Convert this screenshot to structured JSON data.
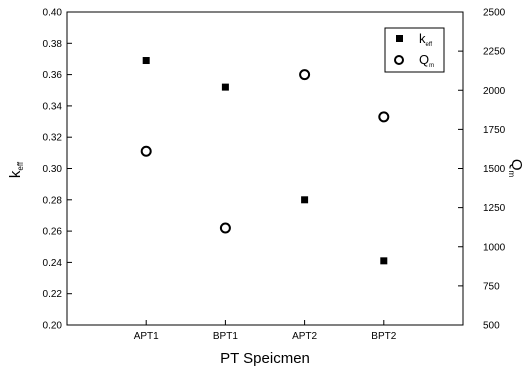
{
  "chart_data": {
    "type": "scatter",
    "categories": [
      "APT1",
      "BPT1",
      "APT2",
      "BPT2"
    ],
    "xlabel": "PT Speicmen",
    "y_left": {
      "label_main": "k",
      "label_sub": "eff",
      "ylim": [
        0.2,
        0.4
      ],
      "ticks": [
        "0.20",
        "0.22",
        "0.24",
        "0.26",
        "0.28",
        "0.30",
        "0.32",
        "0.34",
        "0.36",
        "0.38",
        "0.40"
      ]
    },
    "y_right": {
      "label_main": "Q",
      "label_sub": "m",
      "ylim": [
        500,
        2500
      ],
      "ticks": [
        "500",
        "750",
        "1000",
        "1250",
        "1500",
        "1750",
        "2000",
        "2250",
        "2500"
      ]
    },
    "series": [
      {
        "label_main": "k",
        "label_sub": "eff",
        "marker": "filled-square",
        "axis": "left",
        "values": [
          0.369,
          0.352,
          0.28,
          0.241
        ]
      },
      {
        "label_main": "Q",
        "label_sub": "m",
        "marker": "open-circle",
        "axis": "right",
        "values": [
          1610,
          1120,
          2100,
          1830
        ]
      }
    ],
    "legend_position": "top-right",
    "grid": false
  }
}
